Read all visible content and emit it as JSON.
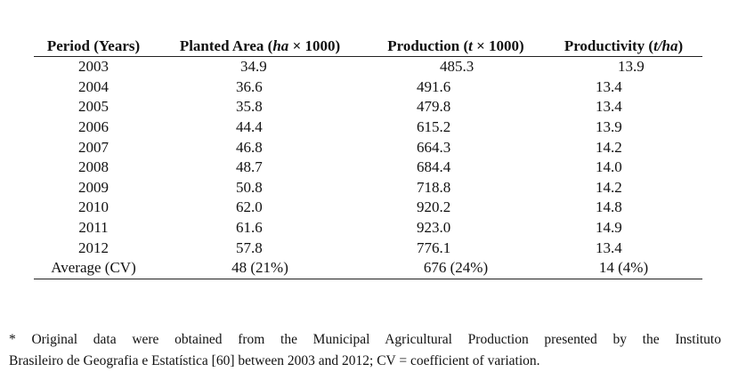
{
  "table": {
    "headers": {
      "period": "Period (Years)",
      "area_a": "Planted Area (",
      "area_i": "ha",
      "area_b": " × 1000)",
      "prod_a": "Production (",
      "prod_i": "t",
      "prod_b": " × 1000)",
      "prodv_a": "Productivity (",
      "prodv_i": "t",
      "prodv_s": "/",
      "prodv_i2": "ha",
      "prodv_b": ")"
    },
    "rows": [
      {
        "year": "2003",
        "area": "34.9",
        "production": "485.3",
        "productivity": "13.9"
      },
      {
        "year": "2004",
        "area": "36.6",
        "production": "491.6",
        "productivity": "13.4"
      },
      {
        "year": "2005",
        "area": "35.8",
        "production": "479.8",
        "productivity": "13.4"
      },
      {
        "year": "2006",
        "area": "44.4",
        "production": "615.2",
        "productivity": "13.9"
      },
      {
        "year": "2007",
        "area": "46.8",
        "production": "664.3",
        "productivity": "14.2"
      },
      {
        "year": "2008",
        "area": "48.7",
        "production": "684.4",
        "productivity": "14.0"
      },
      {
        "year": "2009",
        "area": "50.8",
        "production": "718.8",
        "productivity": "14.2"
      },
      {
        "year": "2010",
        "area": "62.0",
        "production": "920.2",
        "productivity": "14.8"
      },
      {
        "year": "2011",
        "area": "61.6",
        "production": "923.0",
        "productivity": "14.9"
      },
      {
        "year": "2012",
        "area": "57.8",
        "production": "776.1",
        "productivity": "13.4"
      }
    ],
    "average": {
      "label": "Average (CV)",
      "area": "48 (21%)",
      "production": "676 (24%)",
      "productivity": "14 (4%)"
    }
  },
  "footnote": {
    "line1": "* Original data were obtained from the Municipal Agricultural Production presented by the Instituto",
    "line2": "Brasileiro de Geografia e Estatística [60] between 2003 and 2012; CV = coefficient of variation."
  }
}
